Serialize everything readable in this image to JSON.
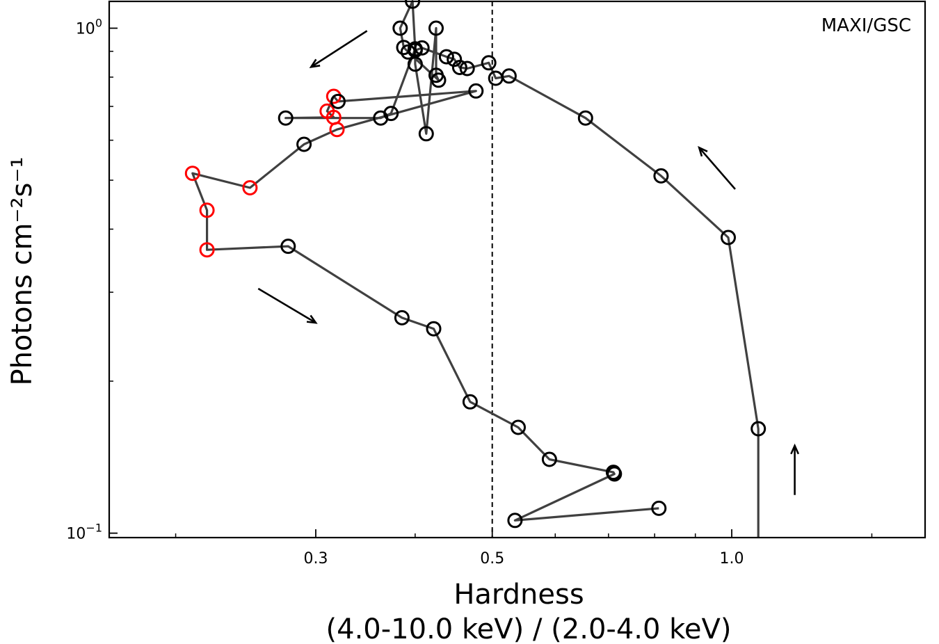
{
  "chart_data": {
    "type": "scatter",
    "title": "",
    "annotation": "MAXI/GSC",
    "xlabel_line1": "Hardness",
    "xlabel_line2": "(4.0-10.0 keV) / (2.0-4.0 keV)",
    "ylabel": "Photons cm⁻²s⁻¹",
    "xscale": "log",
    "yscale": "log",
    "xlim": [
      0.165,
      1.75
    ],
    "ylim": [
      0.098,
      1.13
    ],
    "x_ticks": [
      {
        "value": 0.3,
        "label": "0.3"
      },
      {
        "value": 0.5,
        "label": "0.5"
      },
      {
        "value": 1.0,
        "label": "1.0"
      }
    ],
    "y_ticks": [
      {
        "value": 1.0,
        "base": "10",
        "exp": "0"
      },
      {
        "value": 0.1,
        "base": "10",
        "exp": "−1"
      }
    ],
    "x_minor_ticks": [
      0.2,
      0.4,
      0.6,
      0.7,
      0.8,
      0.9,
      1.5
    ],
    "y_minor_ticks": [
      0.2,
      0.3,
      0.4,
      0.5,
      0.6,
      0.7,
      0.8,
      0.9
    ],
    "vline": {
      "x": 0.5,
      "style": "dashed"
    },
    "series": [
      {
        "name": "hardness-intensity track",
        "line_color": "#404040",
        "points": [
          {
            "x": 1.08,
            "y": 0.098,
            "color": "none"
          },
          {
            "x": 1.08,
            "y": 0.161,
            "color": "#000000"
          },
          {
            "x": 0.99,
            "y": 0.385,
            "color": "#000000"
          },
          {
            "x": 0.815,
            "y": 0.51,
            "color": "#000000"
          },
          {
            "x": 0.655,
            "y": 0.664,
            "color": "#000000"
          },
          {
            "x": 0.525,
            "y": 0.804,
            "color": "#000000"
          },
          {
            "x": 0.505,
            "y": 0.796,
            "color": "#000000"
          },
          {
            "x": 0.495,
            "y": 0.854,
            "color": "#000000"
          },
          {
            "x": 0.465,
            "y": 0.832,
            "color": "#000000"
          },
          {
            "x": 0.455,
            "y": 0.836,
            "color": "#000000"
          },
          {
            "x": 0.448,
            "y": 0.868,
            "color": "#000000"
          },
          {
            "x": 0.438,
            "y": 0.878,
            "color": "#000000"
          },
          {
            "x": 0.408,
            "y": 0.914,
            "color": "#000000"
          },
          {
            "x": 0.4,
            "y": 0.904,
            "color": "#000000"
          },
          {
            "x": 0.4,
            "y": 0.849,
            "color": "#000000"
          },
          {
            "x": 0.413,
            "y": 0.618,
            "color": "#000000"
          },
          {
            "x": 0.425,
            "y": 1.0,
            "color": "#000000"
          },
          {
            "x": 0.425,
            "y": 0.807,
            "color": "#000000"
          },
          {
            "x": 0.428,
            "y": 0.789,
            "color": "#000000"
          },
          {
            "x": 0.392,
            "y": 0.897,
            "color": "#000000"
          },
          {
            "x": 0.387,
            "y": 0.916,
            "color": "#000000"
          },
          {
            "x": 0.383,
            "y": 1.0,
            "color": "#000000"
          },
          {
            "x": 0.397,
            "y": 1.131,
            "color": "#000000"
          },
          {
            "x": 0.4,
            "y": 0.91,
            "color": "#000000"
          },
          {
            "x": 0.373,
            "y": 0.678,
            "color": "#000000"
          },
          {
            "x": 0.362,
            "y": 0.664,
            "color": "#000000"
          },
          {
            "x": 0.275,
            "y": 0.664,
            "color": "#000000"
          },
          {
            "x": 0.316,
            "y": 0.666,
            "color": "#ff0000"
          },
          {
            "x": 0.31,
            "y": 0.685,
            "color": "#ff0000"
          },
          {
            "x": 0.316,
            "y": 0.733,
            "color": "#ff0000"
          },
          {
            "x": 0.32,
            "y": 0.716,
            "color": "#000000"
          },
          {
            "x": 0.477,
            "y": 0.751,
            "color": "#000000"
          },
          {
            "x": 0.319,
            "y": 0.63,
            "color": "#ff0000"
          },
          {
            "x": 0.29,
            "y": 0.589,
            "color": "#000000"
          },
          {
            "x": 0.248,
            "y": 0.483,
            "color": "#ff0000"
          },
          {
            "x": 0.21,
            "y": 0.516,
            "color": "#ff0000"
          },
          {
            "x": 0.219,
            "y": 0.436,
            "color": "#ff0000"
          },
          {
            "x": 0.219,
            "y": 0.364,
            "color": "#ff0000"
          },
          {
            "x": 0.277,
            "y": 0.37,
            "color": "#000000"
          },
          {
            "x": 0.385,
            "y": 0.267,
            "color": "#000000"
          },
          {
            "x": 0.422,
            "y": 0.254,
            "color": "#000000"
          },
          {
            "x": 0.469,
            "y": 0.182,
            "color": "#000000"
          },
          {
            "x": 0.539,
            "y": 0.162,
            "color": "#000000"
          },
          {
            "x": 0.59,
            "y": 0.14,
            "color": "#000000"
          },
          {
            "x": 0.71,
            "y": 0.132,
            "color": "#000000"
          },
          {
            "x": 0.712,
            "y": 0.131,
            "color": "#000000"
          },
          {
            "x": 0.534,
            "y": 0.106,
            "color": "#000000"
          },
          {
            "x": 0.81,
            "y": 0.112,
            "color": "#000000"
          }
        ]
      }
    ],
    "arrows": [
      {
        "direction": "up-left",
        "from": [
          1.01,
          0.48
        ],
        "to": [
          0.91,
          0.58
        ]
      },
      {
        "direction": "up-left",
        "from": [
          0.348,
          0.988
        ],
        "to": [
          0.296,
          0.838
        ]
      },
      {
        "direction": "down-right",
        "from": [
          0.254,
          0.305
        ],
        "to": [
          0.3,
          0.261
        ]
      },
      {
        "direction": "up",
        "from": [
          1.2,
          0.119
        ],
        "to": [
          1.2,
          0.149
        ]
      }
    ]
  }
}
